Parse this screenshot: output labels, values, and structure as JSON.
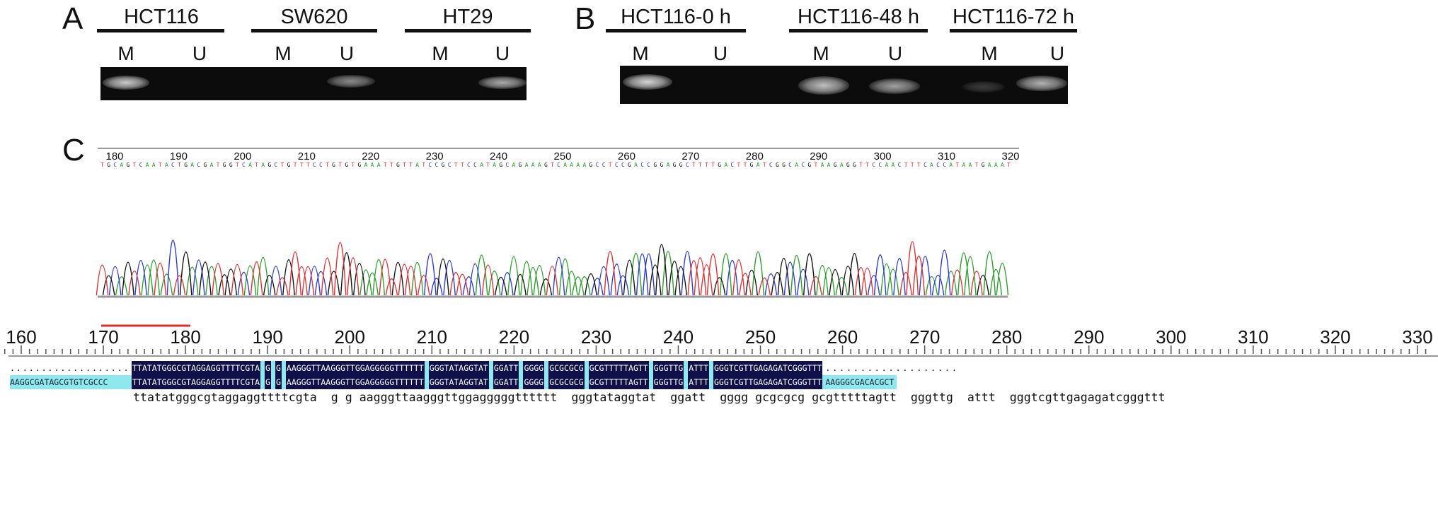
{
  "panels": {
    "a": {
      "letter": "A",
      "groups": [
        {
          "title": "HCT116",
          "lanes": [
            "M",
            "U"
          ]
        },
        {
          "title": "SW620",
          "lanes": [
            "M",
            "U"
          ]
        },
        {
          "title": "HT29",
          "lanes": [
            "M",
            "U"
          ]
        }
      ],
      "bands": [
        {
          "group": 0,
          "lane": "M",
          "intensity": 0.9
        },
        {
          "group": 1,
          "lane": "U",
          "intensity": 0.6
        },
        {
          "group": 2,
          "lane": "U",
          "intensity": 0.75
        }
      ]
    },
    "b": {
      "letter": "B",
      "groups": [
        {
          "title": "HCT116-0 h",
          "lanes": [
            "M",
            "U"
          ]
        },
        {
          "title": "HCT116-48 h",
          "lanes": [
            "M",
            "U"
          ]
        },
        {
          "title": "HCT116-72 h",
          "lanes": [
            "M",
            "U"
          ]
        }
      ],
      "bands": [
        {
          "group": 0,
          "lane": "M",
          "intensity": 0.95
        },
        {
          "group": 1,
          "lane": "M",
          "intensity": 0.8
        },
        {
          "group": 1,
          "lane": "U",
          "intensity": 0.7
        },
        {
          "group": 2,
          "lane": "M",
          "intensity": 0.2
        },
        {
          "group": 2,
          "lane": "U",
          "intensity": 0.75
        }
      ]
    },
    "c": {
      "letter": "C",
      "chromatogram": {
        "ruler_ticks": [
          "180",
          "190",
          "200",
          "210",
          "220",
          "230",
          "240",
          "250",
          "260",
          "270",
          "280",
          "290",
          "300",
          "310",
          "320"
        ],
        "base_calls": "TGCAGTCAATACTGACGATGGTCATAGCTGTTTCCTGTGTGAAATTGTTATCCGCTTCCATAGCAGAAAGTCAAAAGCCTCCGACCGGAGGCTTTTGACTTGATCGGCACGTAAGAGGTTCCAACTTTCACCATAATGAAAT",
        "base_colors": {
          "A": "#2aa02a",
          "C": "#2b3bd6",
          "G": "#111111",
          "T": "#e03030"
        }
      },
      "alignment": {
        "ruler_ticks": [
          "160",
          "170",
          "180",
          "190",
          "200",
          "210",
          "220",
          "230",
          "240",
          "250",
          "260",
          "270",
          "280",
          "290",
          "300",
          "310",
          "320",
          "330"
        ],
        "top_row_dots_left": "...........................",
        "top_segments": [
          "TTATATGGGCGTAGGAGGTTTTCGTA",
          "G",
          "G",
          "AAGGGTTAAGGGTTGGAGGGGGTTTTTT",
          "GGGTATAGGTAT",
          "GGATT",
          "GGGG",
          "GCGCGCG",
          "GCGTTTTTAGTT",
          "GGGTTG",
          "ATTT",
          "GGGTCGTTGAGAGATCGGGTTT"
        ],
        "top_row_dots_right": "...................",
        "bottom_left": "AAGGCGATAGCGTGTCGCCC",
        "bottom_segments": [
          "TTATATGGGCGTAGGAGGTTTTCGTA",
          "G",
          "G",
          "AAGGGTTAAGGGTTGGAGGGGGTTTTTT",
          "GGGTATAGGTAT",
          "GGATT",
          "GGGG",
          "GCGCGCG",
          "GCGTTTTTAGTT",
          "GGGTTG",
          "ATTT",
          "GGGTCGTTGAGAGATCGGGTTT"
        ],
        "bottom_right": "AAGGGCGACACGCT",
        "consensus": "ttatatgggcgtaggaggttttcgta  g g aagggttaagggttggagggggtttttt  gggtataggtat  ggatt  gggg gcgcgcg gcgtttttagtt  gggttg  attt  gggtcgttgagagatcgggttt"
      }
    }
  }
}
